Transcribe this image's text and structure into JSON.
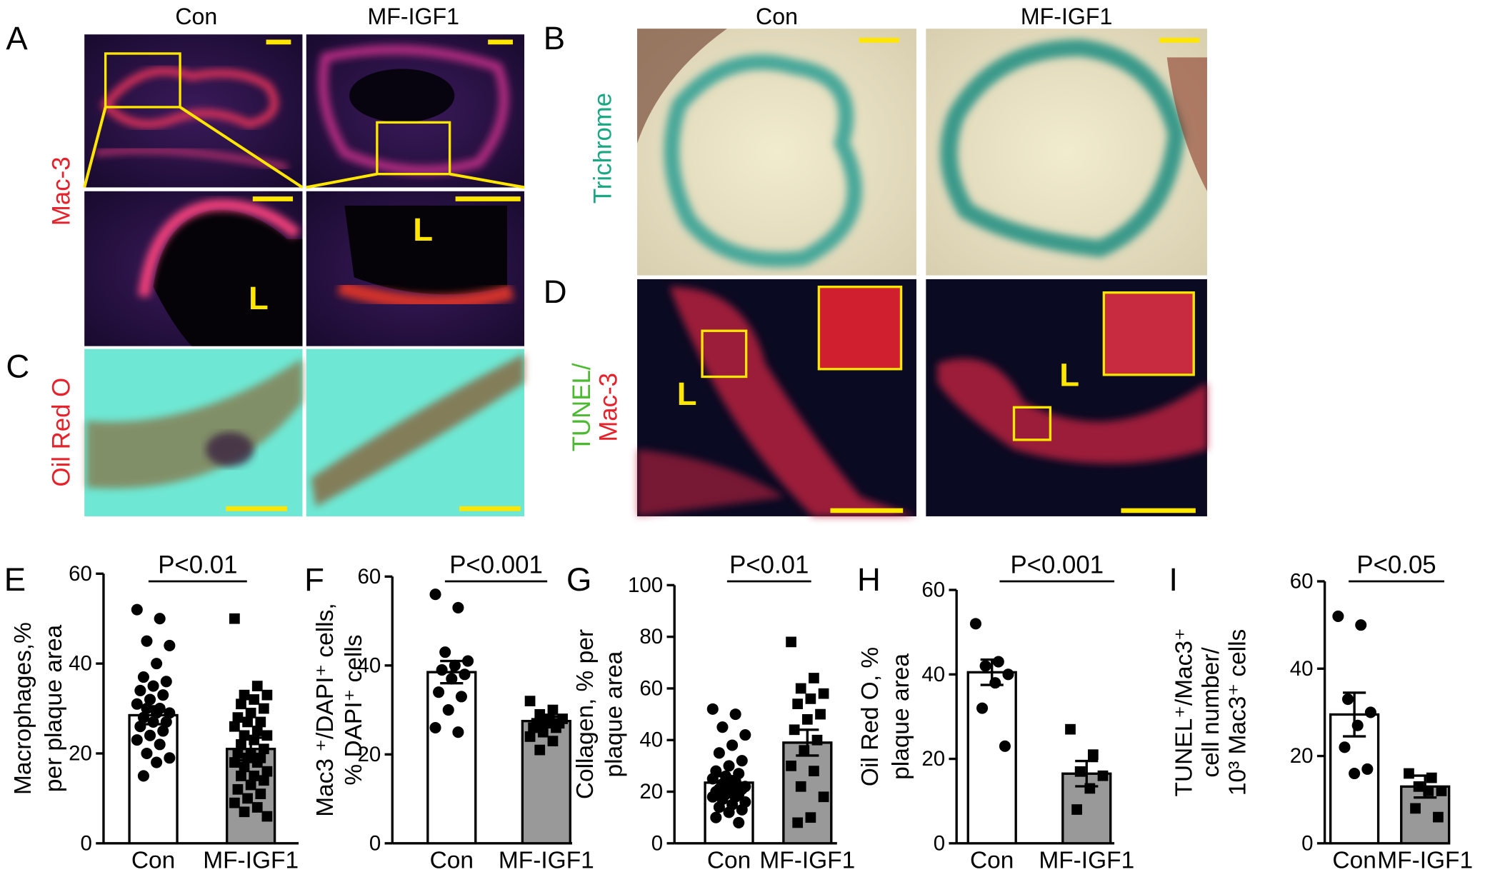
{
  "figure": {
    "panel_labels": [
      "A",
      "B",
      "C",
      "D",
      "E",
      "F",
      "G",
      "H",
      "I"
    ],
    "column_labels": [
      "Con",
      "MF-IGF1",
      "Con",
      "MF-IGF1"
    ],
    "row_labels": {
      "mac3": "Mac-3",
      "oil_red_o": "Oil Red O",
      "trichrome": "Trichrome",
      "tunel": "TUNEL/",
      "tunel_mac3": "Mac-3"
    },
    "lumen_labels": [
      "L",
      "L",
      "L",
      "L"
    ]
  },
  "chart_data": [
    {
      "type": "bar",
      "ylabel": [
        "Macrophages,%",
        "per plaque area"
      ],
      "categories": [
        "Con",
        "MF-IGF1"
      ],
      "values": [
        28.5,
        21
      ],
      "errors": [
        2,
        2.5
      ],
      "colors": [
        "#ffffff",
        "#999999"
      ],
      "markers": [
        "circle",
        "square"
      ],
      "points": [
        [
          52,
          50,
          45,
          44,
          40,
          37,
          36,
          35,
          34,
          33,
          32,
          31,
          30,
          30,
          29,
          29,
          28,
          27,
          27,
          26,
          25,
          24,
          23,
          22,
          20,
          19,
          18,
          15
        ],
        [
          50,
          35,
          33,
          33,
          32,
          31,
          30,
          29,
          28,
          27,
          27,
          26,
          25,
          24,
          24,
          23,
          22,
          21,
          20,
          20,
          19,
          19,
          18,
          18,
          17,
          16,
          15,
          15,
          14,
          13,
          12,
          11,
          10,
          9,
          8,
          7,
          6
        ]
      ],
      "annotation": "P<0.01",
      "ylim": [
        0,
        60
      ],
      "yticks": [
        0,
        20,
        40,
        60
      ]
    },
    {
      "type": "bar",
      "ylabel": [
        "Mac3 ⁺/DAPI⁺ cells,",
        "% DAPI⁺ cells"
      ],
      "categories": [
        "Con",
        "MF-IGF1"
      ],
      "values": [
        38.5,
        27.5
      ],
      "errors": [
        2.5,
        1
      ],
      "colors": [
        "#ffffff",
        "#999999"
      ],
      "markers": [
        "circle",
        "square"
      ],
      "points": [
        [
          56,
          53,
          43,
          41,
          40,
          39,
          38,
          37,
          34,
          33,
          30,
          26,
          25
        ],
        [
          32,
          30,
          29,
          28,
          28,
          27,
          27,
          27,
          26,
          26,
          25,
          24,
          23,
          21
        ]
      ],
      "annotation": "P<0.001",
      "ylim": [
        0,
        60
      ],
      "yticks": [
        0,
        20,
        40,
        60
      ]
    },
    {
      "type": "bar",
      "ylabel": [
        "Collagen, % per",
        "plaque area"
      ],
      "categories": [
        "Con",
        "MF-IGF1"
      ],
      "values": [
        23.5,
        39
      ],
      "errors": [
        2.5,
        5
      ],
      "colors": [
        "#ffffff",
        "#999999"
      ],
      "markers": [
        "circle",
        "square"
      ],
      "points": [
        [
          52,
          50,
          45,
          42,
          38,
          35,
          32,
          30,
          28,
          27,
          26,
          25,
          24,
          23,
          22,
          22,
          21,
          21,
          20,
          20,
          19,
          19,
          18,
          18,
          17,
          16,
          15,
          14,
          13,
          12,
          10,
          8
        ],
        [
          78,
          64,
          60,
          58,
          56,
          54,
          50,
          48,
          44,
          40,
          36,
          30,
          28,
          22,
          18,
          10,
          8
        ]
      ],
      "annotation": "P<0.01",
      "ylim": [
        0,
        100
      ],
      "yticks": [
        0,
        20,
        40,
        60,
        80,
        100
      ]
    },
    {
      "type": "bar",
      "ylabel": [
        "Oil Red O, %",
        "plaque area"
      ],
      "categories": [
        "Con",
        "MF-IGF1"
      ],
      "values": [
        40.5,
        16.5
      ],
      "errors": [
        3,
        3
      ],
      "colors": [
        "#ffffff",
        "#999999"
      ],
      "markers": [
        "circle",
        "square"
      ],
      "points": [
        [
          52,
          43,
          42,
          40,
          38,
          32,
          23
        ],
        [
          27,
          21,
          17,
          16,
          13,
          8
        ]
      ],
      "annotation": "P<0.001",
      "ylim": [
        0,
        60
      ],
      "yticks": [
        0,
        20,
        40,
        60
      ]
    },
    {
      "type": "bar",
      "ylabel": [
        "TUNEL⁺/Mac3⁺",
        "cell number/",
        "10³ Mac3⁺ cells"
      ],
      "categories": [
        "Con",
        "MF-IGF1"
      ],
      "values": [
        29.5,
        13
      ],
      "errors": [
        5,
        2.5
      ],
      "colors": [
        "#ffffff",
        "#999999"
      ],
      "markers": [
        "circle",
        "square"
      ],
      "points": [
        [
          52,
          50,
          33,
          30,
          27,
          22,
          17,
          16
        ],
        [
          16,
          15,
          13,
          12,
          12,
          8,
          6
        ]
      ],
      "annotation": "P<0.05",
      "ylim": [
        0,
        60
      ],
      "yticks": [
        0,
        20,
        40,
        60
      ]
    }
  ]
}
